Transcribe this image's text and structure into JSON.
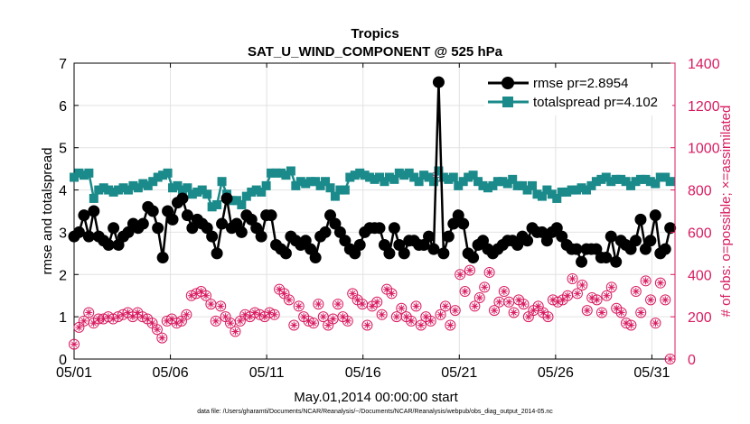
{
  "chart_data": {
    "type": "line",
    "title": "Tropics",
    "subtitle": "SAT_U_WIND_COMPONENT @ 525 hPa",
    "xlabel": "May.01,2014 00:00:00 start",
    "ylabel_left": "rmse and totalspread",
    "ylabel_right": "# of obs: o=possible; ×=assimilated",
    "x_tick_labels": [
      "05/01",
      "05/06",
      "05/11",
      "05/16",
      "05/21",
      "05/26",
      "05/31"
    ],
    "x_tick_values": [
      1,
      6,
      11,
      16,
      21,
      26,
      31
    ],
    "xlim": [
      1,
      32.2
    ],
    "ylim_left": [
      0,
      7
    ],
    "y_ticks_left": [
      "0",
      "1",
      "2",
      "3",
      "4",
      "5",
      "6",
      "7"
    ],
    "ylim_right": [
      0,
      1400
    ],
    "y_ticks_right": [
      "0",
      "200",
      "400",
      "600",
      "800",
      "1000",
      "1200",
      "1400"
    ],
    "grid": true,
    "colors": {
      "rmse": "#000000",
      "totalspread": "#1a8a8a",
      "obs": "#d81b60"
    },
    "legend": {
      "position": "top-right",
      "entries": [
        "rmse pr=2.8954",
        "totalspread pr=4.102"
      ]
    },
    "footnote": "data file: /Users/gharamti/Documents/NCAR/Reanalysis/~/Documents/NCAR/Reanalysis/webpub/obs_diag_output_2014-05.nc",
    "series": [
      {
        "name": "rmse",
        "axis": "left",
        "values": [
          2.9,
          3.0,
          3.4,
          2.9,
          3.5,
          2.9,
          2.8,
          2.7,
          3.1,
          2.7,
          2.9,
          3.0,
          3.2,
          3.1,
          3.2,
          3.6,
          3.5,
          3.1,
          2.4,
          3.5,
          3.3,
          3.7,
          3.8,
          3.4,
          3.1,
          3.3,
          3.2,
          3.1,
          2.9,
          2.5,
          3.2,
          3.8,
          3.1,
          3.2,
          3.0,
          3.4,
          3.3,
          3.1,
          2.9,
          3.4,
          3.4,
          2.7,
          2.6,
          2.5,
          2.9,
          2.8,
          2.7,
          2.8,
          2.6,
          2.4,
          2.9,
          3.0,
          3.4,
          3.2,
          3.0,
          2.8,
          2.6,
          2.5,
          2.7,
          3.0,
          3.1,
          3.1,
          3.1,
          2.7,
          2.5,
          3.1,
          2.7,
          2.5,
          2.8,
          2.8,
          2.7,
          2.7,
          2.9,
          2.6,
          6.55,
          2.5,
          2.9,
          3.2,
          3.4,
          3.2,
          2.5,
          2.4,
          2.7,
          2.8,
          2.6,
          2.5,
          2.6,
          2.7,
          2.8,
          2.8,
          2.7,
          2.9,
          2.8,
          3.1,
          3.0,
          3.0,
          2.8,
          3.0,
          3.1,
          2.9,
          2.7,
          2.6,
          2.6,
          2.3,
          2.6,
          2.6,
          2.6,
          2.4,
          2.4,
          2.9,
          2.3,
          2.8,
          2.7,
          2.6,
          2.8,
          3.3,
          2.6,
          2.8,
          3.4,
          2.5,
          2.6,
          3.1
        ]
      },
      {
        "name": "totalspread",
        "axis": "left",
        "values": [
          4.3,
          4.4,
          4.35,
          4.4,
          3.8,
          4.0,
          4.05,
          4.0,
          3.95,
          4.0,
          4.05,
          4.0,
          4.1,
          4.05,
          4.15,
          4.1,
          4.2,
          4.3,
          4.35,
          4.4,
          4.05,
          4.1,
          4.0,
          4.05,
          3.9,
          3.95,
          4.0,
          3.9,
          3.6,
          3.65,
          4.2,
          3.9,
          3.75,
          3.75,
          3.65,
          3.85,
          3.95,
          4.0,
          3.95,
          4.1,
          4.4,
          4.4,
          4.4,
          4.35,
          4.45,
          4.1,
          4.2,
          4.15,
          4.2,
          4.2,
          4.1,
          4.2,
          4.05,
          3.85,
          4.0,
          4.0,
          4.3,
          4.35,
          4.4,
          4.35,
          4.3,
          4.25,
          4.3,
          4.2,
          4.3,
          4.25,
          4.4,
          4.35,
          4.4,
          4.3,
          4.2,
          4.35,
          4.3,
          4.2,
          4.45,
          4.3,
          4.25,
          4.3,
          4.1,
          4.2,
          4.3,
          4.35,
          4.2,
          4.1,
          4.05,
          4.1,
          4.2,
          4.2,
          4.15,
          4.25,
          4.1,
          4.1,
          4.0,
          4.1,
          3.9,
          3.85,
          4.0,
          3.9,
          3.8,
          3.95,
          3.95,
          4.0,
          4.0,
          4.05,
          4.0,
          4.1,
          4.2,
          4.25,
          4.3,
          4.2,
          4.25,
          4.25,
          4.2,
          4.1,
          4.2,
          4.25,
          4.25,
          4.2,
          4.15,
          4.3,
          4.3,
          4.2
        ]
      },
      {
        "name": "obs_possible",
        "axis": "right",
        "values": [
          70,
          150,
          180,
          220,
          170,
          190,
          190,
          200,
          190,
          200,
          210,
          220,
          200,
          220,
          200,
          190,
          170,
          140,
          100,
          180,
          190,
          170,
          180,
          210,
          300,
          310,
          320,
          300,
          260,
          180,
          250,
          200,
          170,
          130,
          180,
          210,
          200,
          220,
          210,
          200,
          220,
          210,
          330,
          310,
          280,
          160,
          250,
          200,
          180,
          170,
          260,
          200,
          160,
          190,
          260,
          200,
          180,
          310,
          280,
          260,
          160,
          250,
          270,
          210,
          330,
          310,
          200,
          240,
          200,
          180,
          250,
          160,
          200,
          180,
          860,
          210,
          250,
          160,
          230,
          400,
          320,
          420,
          250,
          290,
          340,
          410,
          230,
          270,
          320,
          270,
          220,
          280,
          260,
          200,
          230,
          250,
          220,
          200,
          280,
          270,
          280,
          300,
          380,
          310,
          350,
          230,
          290,
          280,
          220,
          300,
          340,
          240,
          220,
          170,
          160,
          320,
          220,
          370,
          280,
          170,
          360,
          280,
          0
        ]
      },
      {
        "name": "obs_assimilated",
        "axis": "right",
        "values": [
          70,
          150,
          180,
          220,
          170,
          190,
          190,
          200,
          190,
          200,
          210,
          220,
          200,
          220,
          200,
          190,
          170,
          140,
          100,
          180,
          190,
          170,
          180,
          210,
          300,
          310,
          320,
          300,
          260,
          180,
          250,
          200,
          170,
          130,
          180,
          210,
          200,
          220,
          210,
          200,
          220,
          210,
          330,
          310,
          280,
          160,
          250,
          200,
          180,
          170,
          260,
          200,
          160,
          190,
          260,
          200,
          180,
          310,
          280,
          260,
          160,
          250,
          270,
          210,
          330,
          310,
          200,
          240,
          200,
          180,
          250,
          160,
          200,
          180,
          860,
          210,
          250,
          160,
          230,
          400,
          320,
          420,
          250,
          290,
          340,
          410,
          230,
          270,
          320,
          270,
          220,
          280,
          260,
          200,
          230,
          250,
          220,
          200,
          280,
          270,
          280,
          300,
          380,
          310,
          350,
          230,
          290,
          280,
          220,
          300,
          340,
          240,
          220,
          170,
          160,
          320,
          220,
          370,
          280,
          170,
          360,
          280,
          0
        ]
      }
    ]
  }
}
